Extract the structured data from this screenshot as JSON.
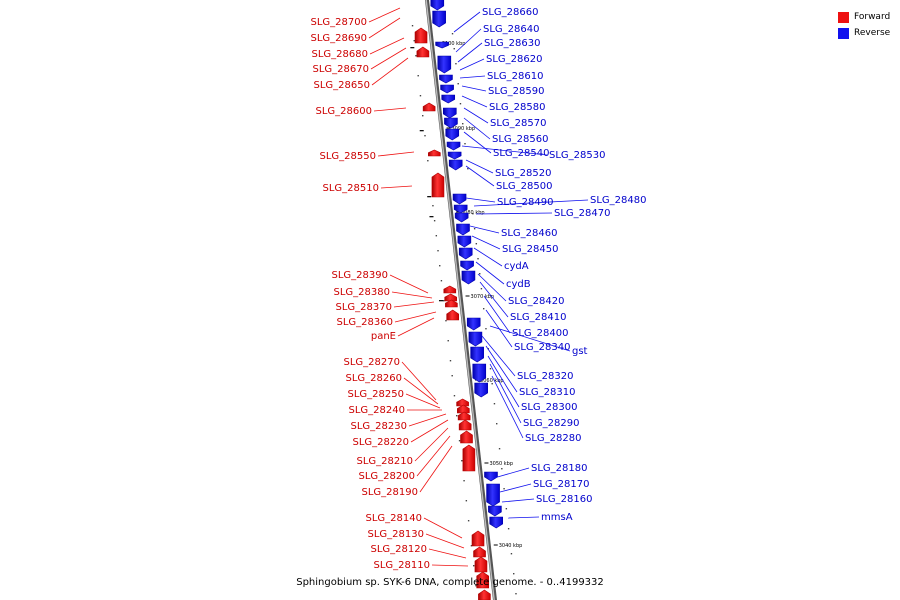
{
  "caption": "Sphingobium sp. SYK-6 DNA, complete genome. - 0..4199332",
  "legend": [
    {
      "label": "Forward",
      "color": "#ee1111"
    },
    {
      "label": "Reverse",
      "color": "#1111ee"
    }
  ],
  "colors": {
    "forward": "#ee1111",
    "forward_dark": "#b30000",
    "reverse": "#1111ee",
    "reverse_dark": "#0000aa",
    "backbone": "#888888"
  },
  "forward_labels": [
    "SLG_28700",
    "SLG_28690",
    "SLG_28680",
    "SLG_28670",
    "SLG_28650",
    "SLG_28600",
    "SLG_28550",
    "SLG_28510",
    "SLG_28390",
    "SLG_28380",
    "SLG_28370",
    "SLG_28360",
    "panE",
    "SLG_28270",
    "SLG_28260",
    "SLG_28250",
    "SLG_28240",
    "SLG_28230",
    "SLG_28220",
    "SLG_28210",
    "SLG_28200",
    "SLG_28190",
    "SLG_28140",
    "SLG_28130",
    "SLG_28120",
    "SLG_28110"
  ],
  "reverse_labels": [
    "SLG_28660",
    "SLG_28640",
    "SLG_28630",
    "SLG_28620",
    "SLG_28610",
    "SLG_28590",
    "SLG_28580",
    "SLG_28570",
    "SLG_28560",
    "SLG_28540",
    "SLG_28530",
    "SLG_28520",
    "SLG_28500",
    "SLG_28490",
    "SLG_28480",
    "SLG_28470",
    "SLG_28460",
    "SLG_28450",
    "cydA",
    "cydB",
    "SLG_28420",
    "SLG_28410",
    "SLG_28400",
    "SLG_28340",
    "gst",
    "SLG_28320",
    "SLG_28310",
    "SLG_28300",
    "SLG_28290",
    "SLG_28280",
    "SLG_28180",
    "SLG_28170",
    "SLG_28160",
    "mmsA"
  ],
  "scale_labels": [
    "3100 kbp",
    "3090 kbp",
    "3080 kbp",
    "3070 kbp",
    "3060 kbp",
    "3050 kbp",
    "3040 kbp"
  ]
}
